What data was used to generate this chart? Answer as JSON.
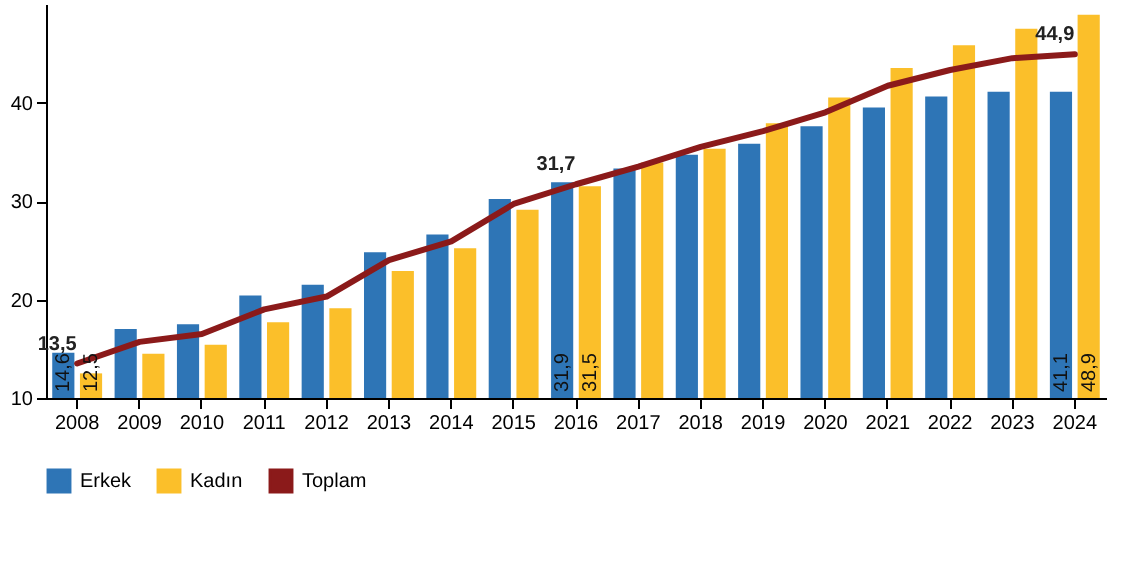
{
  "chart_data": {
    "type": "bar",
    "categories": [
      "2008",
      "2009",
      "2010",
      "2011",
      "2012",
      "2013",
      "2014",
      "2015",
      "2016",
      "2017",
      "2018",
      "2019",
      "2020",
      "2021",
      "2022",
      "2023",
      "2024"
    ],
    "series": [
      {
        "name": "Erkek",
        "color": "#2e75b6",
        "values": [
          14.6,
          17.0,
          17.5,
          20.4,
          21.5,
          24.8,
          26.6,
          30.2,
          31.9,
          33.3,
          34.7,
          35.8,
          37.6,
          39.5,
          40.6,
          41.1,
          41.1
        ],
        "value_labels": [
          "14,6",
          null,
          null,
          null,
          null,
          null,
          null,
          null,
          "31,9",
          null,
          null,
          null,
          null,
          null,
          null,
          null,
          "41,1"
        ]
      },
      {
        "name": "Kadın",
        "color": "#fbbf2a",
        "values": [
          12.5,
          14.5,
          15.4,
          17.7,
          19.1,
          22.9,
          25.2,
          29.1,
          31.5,
          33.9,
          35.3,
          37.9,
          40.5,
          43.5,
          45.8,
          47.5,
          48.9
        ],
        "value_labels": [
          "12,5",
          null,
          null,
          null,
          null,
          null,
          null,
          null,
          "31,5",
          null,
          null,
          null,
          null,
          null,
          null,
          null,
          "48,9"
        ]
      },
      {
        "name": "Toplam",
        "type": "line",
        "color": "#8b1a1a",
        "values": [
          13.5,
          15.7,
          16.5,
          19.0,
          20.3,
          24.0,
          25.9,
          29.7,
          31.7,
          33.5,
          35.5,
          37.1,
          39.0,
          41.7,
          43.3,
          44.5,
          44.9
        ],
        "value_labels": [
          "13,5",
          null,
          null,
          null,
          null,
          null,
          null,
          null,
          "31,7",
          null,
          null,
          null,
          null,
          null,
          null,
          null,
          "44,9"
        ]
      }
    ],
    "ylim": [
      10,
      50
    ],
    "yticks": [
      10,
      20,
      30,
      40
    ],
    "grid": false,
    "legend": "bottom"
  }
}
